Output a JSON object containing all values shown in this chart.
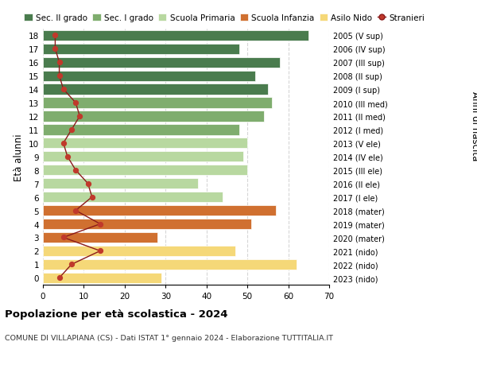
{
  "ages": [
    18,
    17,
    16,
    15,
    14,
    13,
    12,
    11,
    10,
    9,
    8,
    7,
    6,
    5,
    4,
    3,
    2,
    1,
    0
  ],
  "years": [
    "2005 (V sup)",
    "2006 (IV sup)",
    "2007 (III sup)",
    "2008 (II sup)",
    "2009 (I sup)",
    "2010 (III med)",
    "2011 (II med)",
    "2012 (I med)",
    "2013 (V ele)",
    "2014 (IV ele)",
    "2015 (III ele)",
    "2016 (II ele)",
    "2017 (I ele)",
    "2018 (mater)",
    "2019 (mater)",
    "2020 (mater)",
    "2021 (nido)",
    "2022 (nido)",
    "2023 (nido)"
  ],
  "bar_values": [
    65,
    48,
    58,
    52,
    55,
    56,
    54,
    48,
    50,
    49,
    50,
    38,
    44,
    57,
    51,
    28,
    47,
    62,
    29
  ],
  "bar_colors": [
    "#4a7c4e",
    "#4a7c4e",
    "#4a7c4e",
    "#4a7c4e",
    "#4a7c4e",
    "#7fad6e",
    "#7fad6e",
    "#7fad6e",
    "#b8d8a0",
    "#b8d8a0",
    "#b8d8a0",
    "#b8d8a0",
    "#b8d8a0",
    "#d07030",
    "#d07030",
    "#d07030",
    "#f5d878",
    "#f5d878",
    "#f5d878"
  ],
  "stranieri_values": [
    3,
    3,
    4,
    4,
    5,
    8,
    9,
    7,
    5,
    6,
    8,
    11,
    12,
    8,
    14,
    5,
    14,
    7,
    4
  ],
  "title": "Popolazione per età scolastica - 2024",
  "subtitle": "COMUNE DI VILLAPIANA (CS) - Dati ISTAT 1° gennaio 2024 - Elaborazione TUTTITALIA.IT",
  "ylabel_left": "Età alunni",
  "ylabel_right": "Anni di nascita",
  "xlim": [
    0,
    70
  ],
  "xticks": [
    0,
    10,
    20,
    30,
    40,
    50,
    60,
    70
  ],
  "legend_labels": [
    "Sec. II grado",
    "Sec. I grado",
    "Scuola Primaria",
    "Scuola Infanzia",
    "Asilo Nido",
    "Stranieri"
  ],
  "legend_colors": [
    "#4a7c4e",
    "#7fad6e",
    "#b8d8a0",
    "#d07030",
    "#f5d878",
    "#c0392b"
  ],
  "stranieri_color": "#c0392b",
  "stranieri_line_color": "#8b1a1a",
  "bg_color": "#ffffff",
  "bar_height": 0.78
}
